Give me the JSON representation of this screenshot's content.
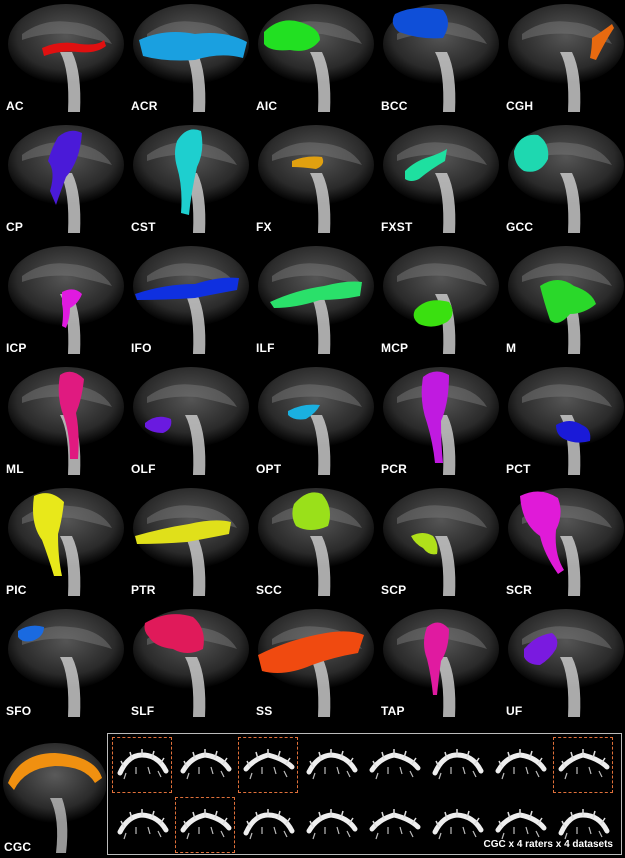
{
  "tracts": [
    {
      "label": "AC",
      "color": "#e01010",
      "shape": "ac"
    },
    {
      "label": "ACR",
      "color": "#1aa0e0",
      "shape": "acr"
    },
    {
      "label": "AIC",
      "color": "#22e022",
      "shape": "aic"
    },
    {
      "label": "BCC",
      "color": "#0f4fd8",
      "shape": "bcc"
    },
    {
      "label": "CGH",
      "color": "#e86a10",
      "shape": "cgh"
    },
    {
      "label": "CP",
      "color": "#4a1ad8",
      "shape": "cp"
    },
    {
      "label": "CST",
      "color": "#1ecfcf",
      "shape": "cst"
    },
    {
      "label": "FX",
      "color": "#e0a010",
      "shape": "fx"
    },
    {
      "label": "FXST",
      "color": "#1ee0a0",
      "shape": "fxst"
    },
    {
      "label": "GCC",
      "color": "#1ed8b0",
      "shape": "gcc"
    },
    {
      "label": "ICP",
      "color": "#e01ae0",
      "shape": "icp"
    },
    {
      "label": "IFO",
      "color": "#0f30e0",
      "shape": "ifo"
    },
    {
      "label": "ILF",
      "color": "#2ae06a",
      "shape": "ilf"
    },
    {
      "label": "MCP",
      "color": "#3ae010",
      "shape": "mcp"
    },
    {
      "label": "M",
      "color": "#2ad82a",
      "shape": "m"
    },
    {
      "label": "ML",
      "color": "#e01a80",
      "shape": "ml"
    },
    {
      "label": "OLF",
      "color": "#6a1ae0",
      "shape": "olf"
    },
    {
      "label": "OPT",
      "color": "#1ab0e0",
      "shape": "opt"
    },
    {
      "label": "PCR",
      "color": "#c01ae0",
      "shape": "pcr"
    },
    {
      "label": "PCT",
      "color": "#1a1ad8",
      "shape": "pct"
    },
    {
      "label": "PIC",
      "color": "#e8e81a",
      "shape": "pic"
    },
    {
      "label": "PTR",
      "color": "#e0e01a",
      "shape": "ptr"
    },
    {
      "label": "SCC",
      "color": "#9ae01a",
      "shape": "scc"
    },
    {
      "label": "SCP",
      "color": "#b0e01a",
      "shape": "scp"
    },
    {
      "label": "SCR",
      "color": "#e01ad8",
      "shape": "scr"
    },
    {
      "label": "SFO",
      "color": "#1a6ae0",
      "shape": "sfo"
    },
    {
      "label": "SLF",
      "color": "#e01a5a",
      "shape": "slf"
    },
    {
      "label": "SS",
      "color": "#f04a10",
      "shape": "ss"
    },
    {
      "label": "TAP",
      "color": "#e01aa0",
      "shape": "tap"
    },
    {
      "label": "UF",
      "color": "#7a1ae0",
      "shape": "uf"
    }
  ],
  "cgc": {
    "label": "CGC",
    "color": "#f09010"
  },
  "panel": {
    "caption": "CGC x 4 raters x 4 datasets",
    "highlighted": [
      0,
      2,
      7,
      9
    ]
  }
}
